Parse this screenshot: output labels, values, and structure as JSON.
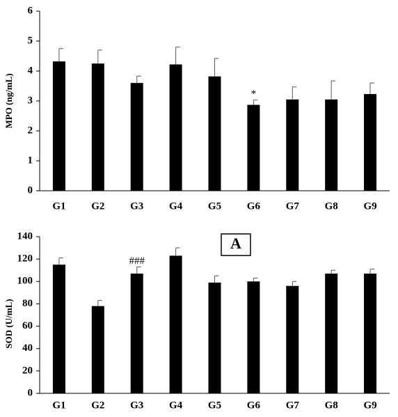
{
  "chart_data": [
    {
      "type": "bar",
      "y_label": "MPO (ng/mL)",
      "categories": [
        "G1",
        "G2",
        "G3",
        "G4",
        "G5",
        "G6",
        "G7",
        "G8",
        "G9"
      ],
      "values": [
        4.32,
        4.25,
        3.6,
        4.22,
        3.82,
        2.87,
        3.05,
        3.05,
        3.23
      ],
      "errors": [
        0.43,
        0.45,
        0.23,
        0.58,
        0.6,
        0.16,
        0.42,
        0.62,
        0.37
      ],
      "color": "#000000",
      "ylim": [
        0,
        6
      ],
      "yticks": [
        0,
        1,
        2,
        3,
        4,
        5,
        6
      ],
      "annotations": [
        {
          "text": "*",
          "category": "G6"
        }
      ]
    },
    {
      "type": "bar",
      "y_label": "SOD (U/mL)",
      "panel_label": "A",
      "categories": [
        "G1",
        "G2",
        "G3",
        "G4",
        "G5",
        "G6",
        "G7",
        "G8",
        "G9"
      ],
      "values": [
        115,
        78,
        107,
        123,
        99,
        100,
        96,
        107,
        107
      ],
      "errors": [
        6,
        5,
        6,
        7,
        6,
        3,
        4,
        3,
        4
      ],
      "color": "#000000",
      "ylim": [
        0,
        140
      ],
      "yticks": [
        0,
        20,
        40,
        60,
        80,
        100,
        120,
        140
      ],
      "annotations": [
        {
          "text": "###",
          "category": "G3"
        }
      ]
    }
  ]
}
